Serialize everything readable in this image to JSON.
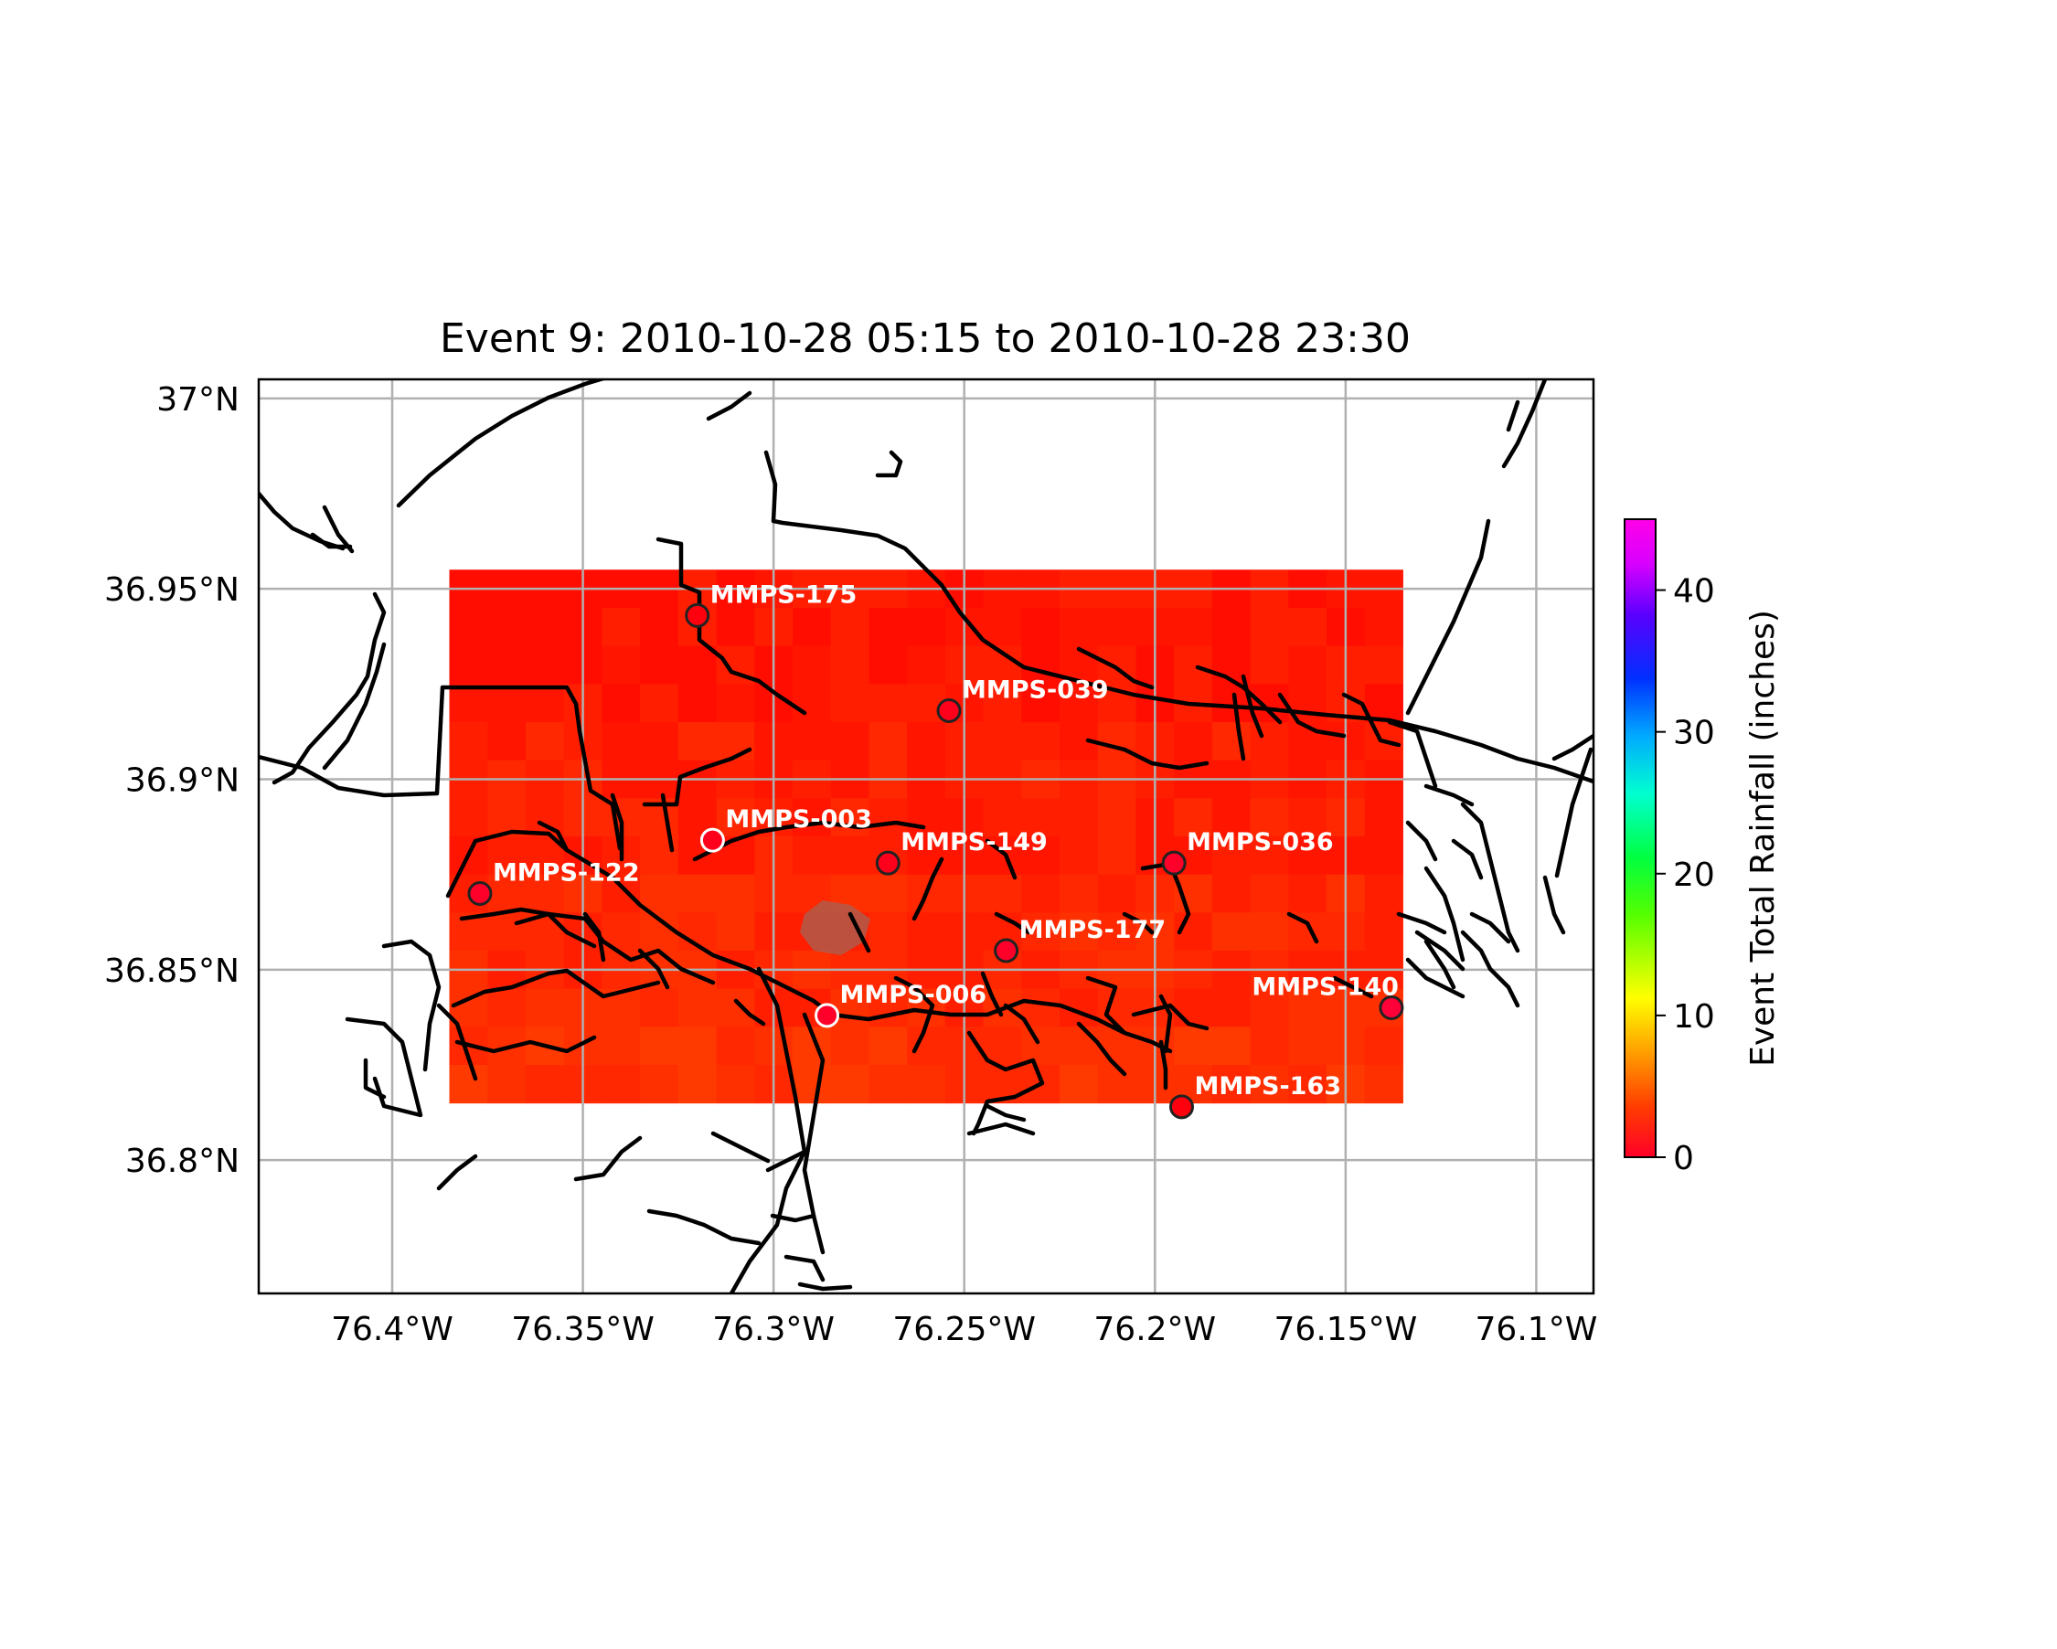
{
  "title": "Event 9: 2010-10-28 05:15 to 2010-10-28 23:30",
  "map": {
    "lon_range": [
      -76.435,
      -76.085
    ],
    "lat_range": [
      36.765,
      37.005
    ],
    "x_ticks": [
      {
        "value": -76.4,
        "label": "76.4°W"
      },
      {
        "value": -76.35,
        "label": "76.35°W"
      },
      {
        "value": -76.3,
        "label": "76.3°W"
      },
      {
        "value": -76.25,
        "label": "76.25°W"
      },
      {
        "value": -76.2,
        "label": "76.2°W"
      },
      {
        "value": -76.15,
        "label": "76.15°W"
      },
      {
        "value": -76.1,
        "label": "76.1°W"
      }
    ],
    "y_ticks": [
      {
        "value": 36.8,
        "label": "36.8°N"
      },
      {
        "value": 36.85,
        "label": "36.85°N"
      },
      {
        "value": 36.9,
        "label": "36.9°N"
      },
      {
        "value": 36.95,
        "label": "36.95°N"
      },
      {
        "value": 37.0,
        "label": "37°N"
      }
    ],
    "gridlines": true,
    "raster_extent": {
      "lon": [
        -76.385,
        -76.135
      ],
      "lat": [
        36.815,
        36.955
      ]
    },
    "raster_color": "#ff1a00",
    "coastline_color": "#000000"
  },
  "colorbar": {
    "label": "Event Total Rainfall (inches)",
    "range": [
      0,
      45
    ],
    "ticks": [
      {
        "value": 0,
        "label": "0"
      },
      {
        "value": 10,
        "label": "10"
      },
      {
        "value": 20,
        "label": "20"
      },
      {
        "value": 30,
        "label": "30"
      },
      {
        "value": 40,
        "label": "40"
      }
    ],
    "colormap": "gist_rainbow_r"
  },
  "chart_data": {
    "type": "scatter",
    "title": "Event 9: 2010-10-28 05:15 to 2010-10-28 23:30",
    "xlabel": "",
    "ylabel": "",
    "xlim": [
      -76.435,
      -76.085
    ],
    "ylim": [
      36.765,
      37.005
    ],
    "series": [
      {
        "points": [
          {
            "id": "MMPS-175",
            "lon": -76.32,
            "lat": 36.943,
            "rainfall": 0.5,
            "label_side": "right"
          },
          {
            "id": "MMPS-039",
            "lon": -76.254,
            "lat": 36.918,
            "rainfall": 1.0,
            "label_side": "right"
          },
          {
            "id": "MMPS-003",
            "lon": -76.316,
            "lat": 36.884,
            "rainfall": 1.0,
            "label_side": "right",
            "marker_edge": "white"
          },
          {
            "id": "MMPS-149",
            "lon": -76.27,
            "lat": 36.878,
            "rainfall": 1.0,
            "label_side": "right"
          },
          {
            "id": "MMPS-036",
            "lon": -76.195,
            "lat": 36.878,
            "rainfall": 1.5,
            "label_side": "right"
          },
          {
            "id": "MMPS-122",
            "lon": -76.377,
            "lat": 36.87,
            "rainfall": 1.5,
            "label_side": "right"
          },
          {
            "id": "MMPS-177",
            "lon": -76.239,
            "lat": 36.855,
            "rainfall": 1.5,
            "label_side": "right"
          },
          {
            "id": "MMPS-006",
            "lon": -76.286,
            "lat": 36.838,
            "rainfall": 1.5,
            "label_side": "right",
            "marker_edge": "white"
          },
          {
            "id": "MMPS-140",
            "lon": -76.138,
            "lat": 36.84,
            "rainfall": 2.0,
            "label_side": "left"
          },
          {
            "id": "MMPS-163",
            "lon": -76.193,
            "lat": 36.814,
            "rainfall": 0.5,
            "label_side": "right"
          }
        ]
      }
    ]
  }
}
